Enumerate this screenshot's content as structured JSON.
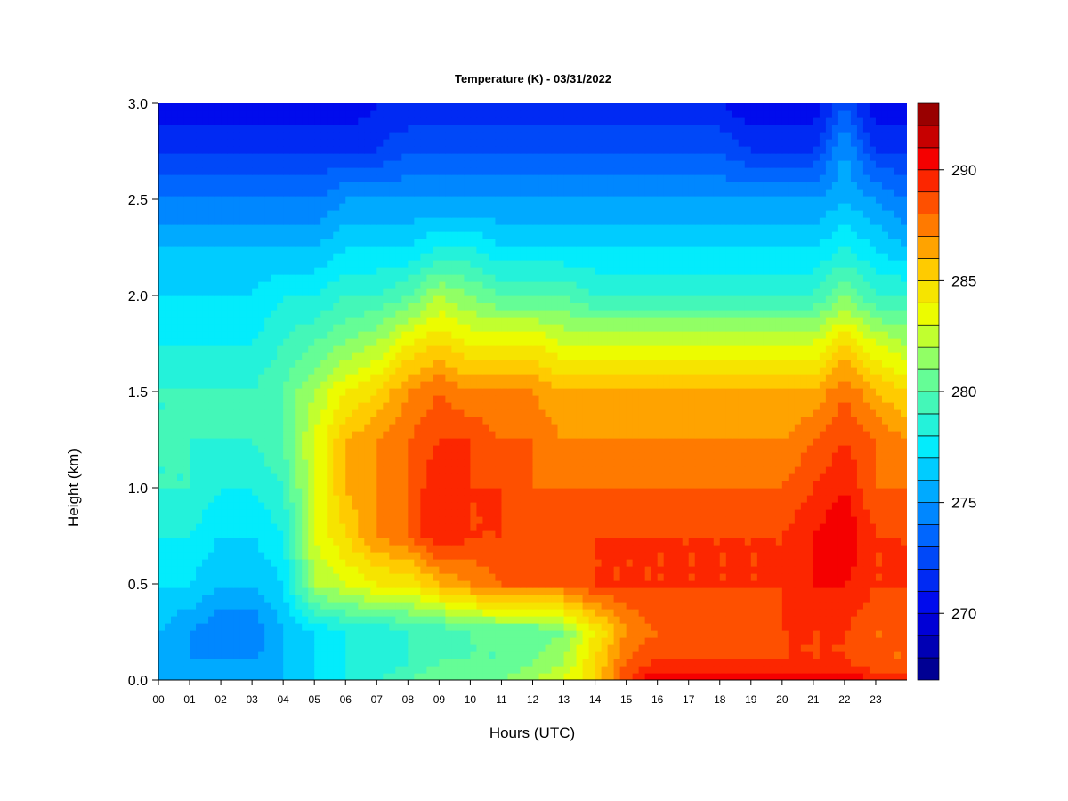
{
  "chart_data": {
    "type": "heatmap",
    "title": "Temperature (K) - 03/31/2022",
    "xlabel": "Hours (UTC)",
    "ylabel": "Height (km)",
    "xlim": [
      0,
      24
    ],
    "ylim": [
      0.0,
      3.0
    ],
    "x_tick_labels": [
      "00",
      "01",
      "02",
      "03",
      "04",
      "05",
      "06",
      "07",
      "08",
      "09",
      "10",
      "11",
      "12",
      "13",
      "14",
      "15",
      "16",
      "17",
      "18",
      "19",
      "20",
      "21",
      "22",
      "23"
    ],
    "y_tick_labels": [
      "0.0",
      "0.5",
      "1.0",
      "1.5",
      "2.0",
      "2.5",
      "3.0"
    ],
    "colorbar": {
      "min": 267,
      "max": 293,
      "step": 1,
      "tick_labels": [
        "270",
        "275",
        "280",
        "285",
        "290"
      ],
      "tick_values": [
        270,
        275,
        280,
        285,
        290
      ]
    },
    "heights_km": [
      0.0,
      0.1,
      0.25,
      0.5,
      0.75,
      1.0,
      1.25,
      1.5,
      1.75,
      2.0,
      2.25,
      2.5,
      2.75,
      3.0
    ],
    "hours": [
      0,
      1,
      2,
      3,
      4,
      5,
      6,
      7,
      8,
      9,
      10,
      11,
      12,
      13,
      14,
      15,
      16,
      17,
      18,
      19,
      20,
      21,
      22,
      23,
      24
    ],
    "temperature_K": [
      [
        276,
        275,
        275,
        275,
        276,
        277,
        278,
        279,
        280,
        281,
        281,
        281,
        282,
        283,
        285,
        289,
        291,
        291,
        291,
        291,
        291,
        291,
        291,
        290,
        290
      ],
      [
        276,
        275,
        275,
        275,
        276,
        277,
        278,
        278,
        279,
        280,
        280,
        280,
        281,
        282,
        285,
        288,
        289,
        289,
        289,
        289,
        289,
        289,
        289,
        288,
        288
      ],
      [
        276,
        275,
        274,
        274,
        276,
        277,
        278,
        278,
        279,
        279,
        280,
        280,
        280,
        281,
        284,
        287,
        288,
        288,
        288,
        288,
        289,
        289,
        289,
        288,
        288
      ],
      [
        277,
        277,
        276,
        276,
        277,
        282,
        283,
        284,
        284,
        286,
        287,
        288,
        288,
        288,
        289,
        289,
        289,
        289,
        289,
        289,
        289,
        290,
        290,
        289,
        289
      ],
      [
        278,
        278,
        277,
        277,
        278,
        283,
        285,
        287,
        288,
        290,
        289,
        289,
        289,
        289,
        289,
        289,
        289,
        289,
        289,
        289,
        289,
        290,
        291,
        289,
        289
      ],
      [
        279,
        279,
        278,
        278,
        279,
        283,
        286,
        287,
        288,
        290,
        289,
        289,
        288,
        288,
        288,
        288,
        288,
        288,
        288,
        288,
        288,
        289,
        290,
        288,
        288
      ],
      [
        279,
        279,
        279,
        279,
        280,
        283,
        286,
        287,
        288,
        289,
        289,
        288,
        288,
        287,
        287,
        287,
        287,
        287,
        287,
        287,
        287,
        288,
        289,
        288,
        287
      ],
      [
        279,
        279,
        279,
        279,
        280,
        282,
        284,
        285,
        287,
        288,
        287,
        287,
        287,
        286,
        286,
        286,
        286,
        286,
        286,
        286,
        286,
        286,
        288,
        286,
        285
      ],
      [
        278,
        278,
        278,
        278,
        279,
        280,
        281,
        282,
        284,
        285,
        284,
        284,
        284,
        283,
        283,
        283,
        283,
        283,
        283,
        283,
        283,
        283,
        285,
        283,
        282
      ],
      [
        277,
        277,
        277,
        277,
        278,
        278,
        279,
        279,
        280,
        282,
        281,
        280,
        280,
        280,
        279,
        279,
        279,
        279,
        279,
        279,
        279,
        279,
        281,
        279,
        279
      ],
      [
        276,
        276,
        276,
        276,
        276,
        276,
        277,
        277,
        277,
        278,
        278,
        277,
        277,
        277,
        277,
        277,
        277,
        277,
        277,
        277,
        277,
        277,
        278,
        277,
        276
      ],
      [
        274,
        274,
        274,
        274,
        274,
        274,
        275,
        275,
        275,
        275,
        275,
        275,
        275,
        275,
        275,
        275,
        275,
        275,
        275,
        275,
        275,
        275,
        276,
        275,
        274
      ],
      [
        272,
        272,
        272,
        272,
        272,
        272,
        272,
        272,
        273,
        273,
        273,
        273,
        273,
        273,
        273,
        273,
        273,
        273,
        273,
        272,
        272,
        272,
        275,
        272,
        272
      ],
      [
        270,
        270,
        270,
        270,
        270,
        270,
        270,
        271,
        271,
        271,
        271,
        271,
        271,
        271,
        271,
        271,
        271,
        271,
        271,
        270,
        270,
        270,
        273,
        270,
        270
      ]
    ]
  }
}
